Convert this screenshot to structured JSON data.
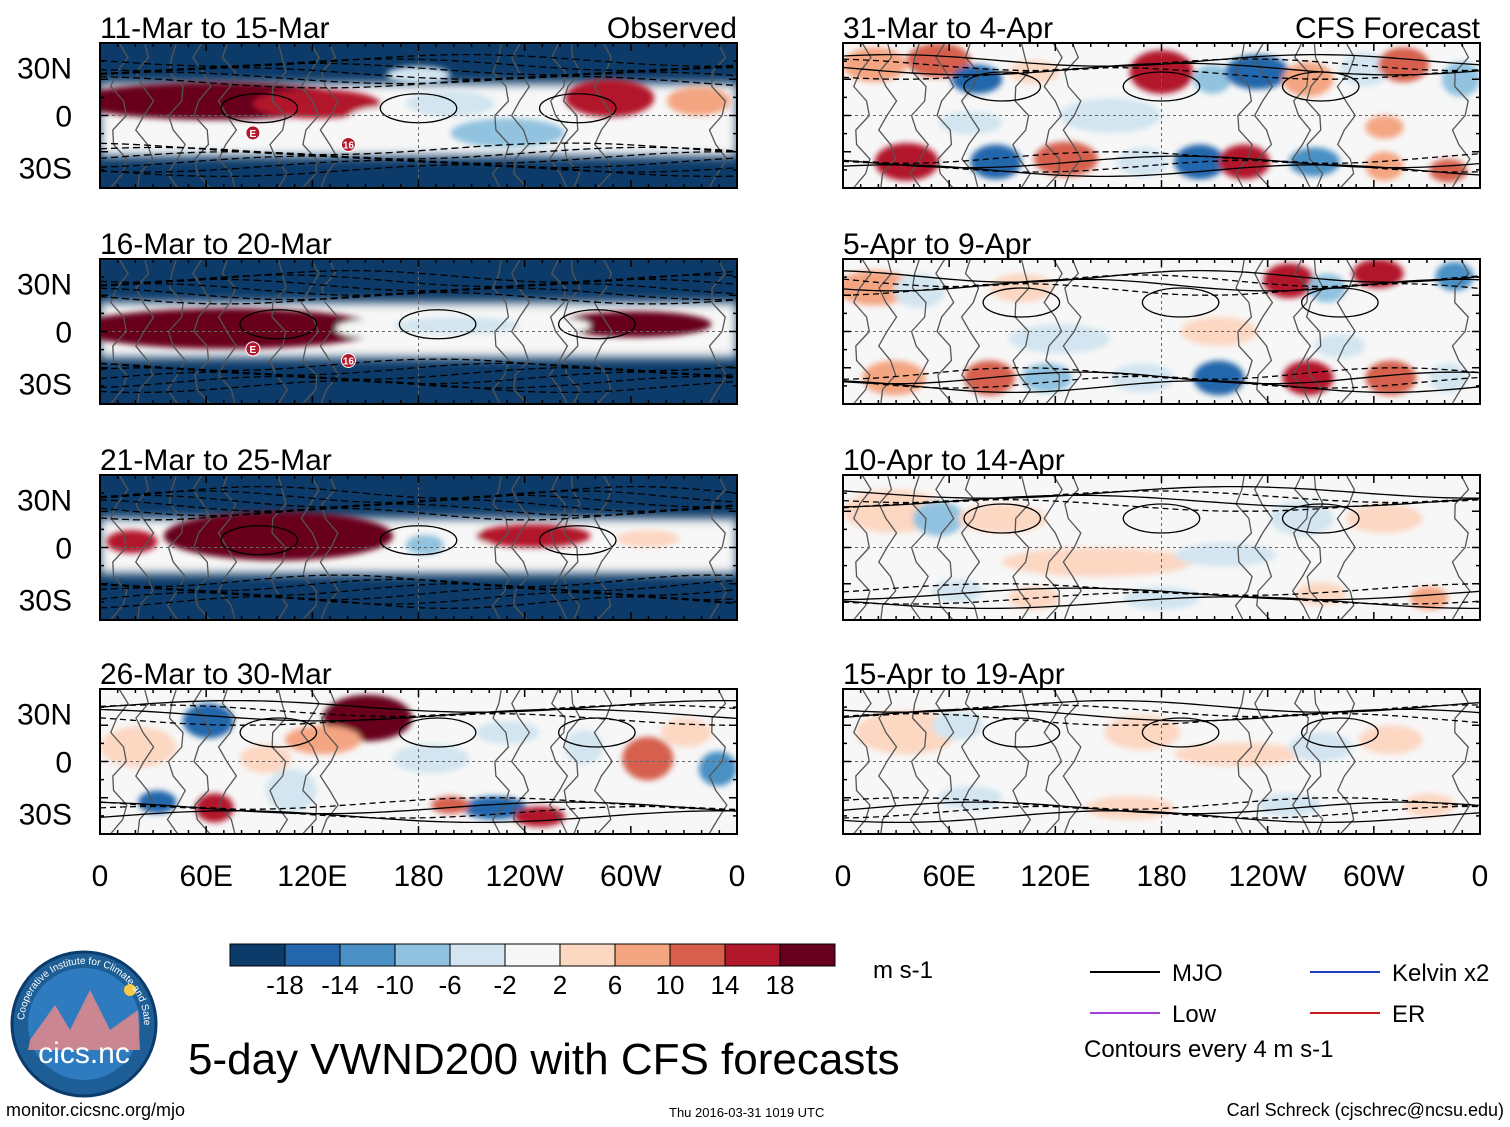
{
  "title": "5-day VWND200 with CFS forecasts",
  "colors": {
    "ocean_dark": "#0b3a6b",
    "land_line": "#555555",
    "mjo": "#000000",
    "kelvin": "#1f3fbf",
    "low": "#a040d8",
    "er": "#cc1a1a"
  },
  "chart_data": {
    "type": "heatmap",
    "variable": "VWND200 (5-day mean)",
    "x_ticks": [
      "0",
      "60E",
      "120E",
      "180",
      "120W",
      "60W",
      "0"
    ],
    "y_ticks": [
      "30N",
      "0",
      "30S"
    ],
    "panels": [
      {
        "period": "11-Mar to 15-Mar",
        "label": "Observed",
        "column": "left",
        "kind": "observed"
      },
      {
        "period": "16-Mar to 20-Mar",
        "label": "",
        "column": "left",
        "kind": "observed"
      },
      {
        "period": "21-Mar to 25-Mar",
        "label": "",
        "column": "left",
        "kind": "observed"
      },
      {
        "period": "26-Mar to 30-Mar",
        "label": "",
        "column": "left",
        "kind": "observed"
      },
      {
        "period": "31-Mar to 4-Apr",
        "label": "CFS Forecast",
        "column": "right",
        "kind": "forecast"
      },
      {
        "period": "5-Apr to 9-Apr",
        "label": "",
        "column": "right",
        "kind": "forecast"
      },
      {
        "period": "10-Apr to 14-Apr",
        "label": "",
        "column": "right",
        "kind": "forecast"
      },
      {
        "period": "15-Apr to 19-Apr",
        "label": "",
        "column": "right",
        "kind": "forecast"
      }
    ],
    "colorbar": {
      "tick_labels": [
        "-18",
        "-14",
        "-10",
        "-6",
        "-2",
        "2",
        "6",
        "10",
        "14",
        "18"
      ],
      "colors": [
        "#0d3b69",
        "#2366ab",
        "#4a90c4",
        "#91c2df",
        "#d2e5f0",
        "#f7f7f7",
        "#fcd7c2",
        "#f4a582",
        "#d6604d",
        "#b2182b",
        "#67001f"
      ],
      "units": "m s-1"
    },
    "contour_legend": [
      {
        "name": "MJO",
        "color": "#000000"
      },
      {
        "name": "Kelvin x2",
        "color": "#1f3fbf"
      },
      {
        "name": "Low",
        "color": "#a040d8"
      },
      {
        "name": "ER",
        "color": "#cc1a1a"
      }
    ],
    "contour_note": "Contours every 4 m s-1",
    "annotations": [
      "E",
      "16"
    ]
  },
  "logo": {
    "text": "cics.nc",
    "ring_text": "Cooperative Institute for Climate and Satellites"
  },
  "footer": {
    "url": "monitor.cicsnc.org/mjo",
    "timestamp": "Thu 2016-03-31 1019 UTC",
    "author": "Carl Schreck (cjschrec@ncsu.edu)"
  }
}
